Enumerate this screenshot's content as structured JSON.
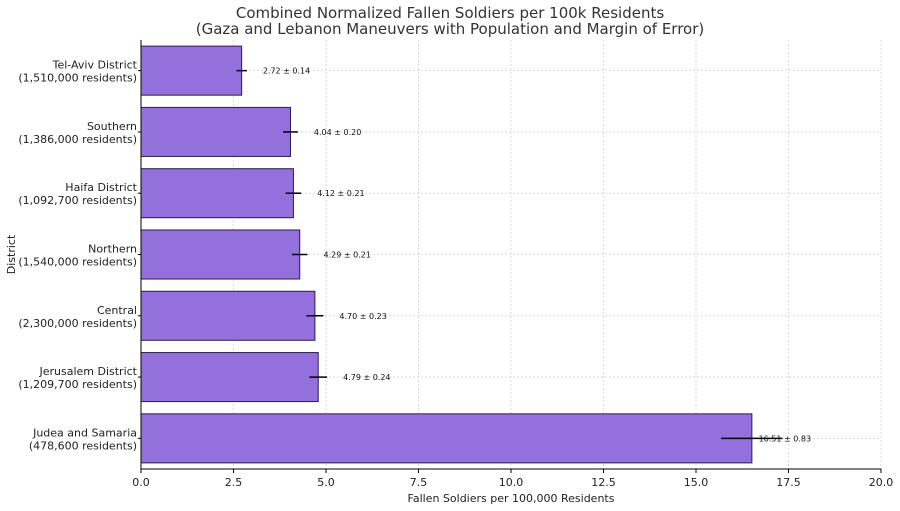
{
  "chart_data": {
    "type": "bar",
    "orientation": "horizontal",
    "title": "Combined Normalized Fallen Soldiers per 100k Residents",
    "subtitle": "(Gaza and Lebanon Maneuvers with Population and Margin of Error)",
    "xlabel": "Fallen Soldiers per 100,000 Residents",
    "ylabel": "District",
    "xlim": [
      0,
      20
    ],
    "xticks": [
      0,
      2.5,
      5,
      7.5,
      10,
      12.5,
      15,
      17.5,
      20
    ],
    "xtick_labels": [
      "0.0",
      "2.5",
      "5.0",
      "7.5",
      "10.0",
      "12.5",
      "15.0",
      "17.5",
      "20.0"
    ],
    "grid": true,
    "bar_color": "#9370db",
    "bar_edge_color": "#2b1d4a",
    "categories": [
      {
        "name": "Tel-Aviv District",
        "residents": "(1,510,000 residents)"
      },
      {
        "name": "Southern",
        "residents": "(1,386,000 residents)"
      },
      {
        "name": "Haifa District",
        "residents": "(1,092,700 residents)"
      },
      {
        "name": "Northern",
        "residents": "(1,540,000 residents)"
      },
      {
        "name": "Central",
        "residents": "(2,300,000 residents)"
      },
      {
        "name": "Jerusalem District",
        "residents": "(1,209,700 residents)"
      },
      {
        "name": "Judea and Samaria",
        "residents": "(478,600 residents)"
      }
    ],
    "values": [
      2.72,
      4.04,
      4.12,
      4.29,
      4.7,
      4.79,
      16.51
    ],
    "errors": [
      0.14,
      0.2,
      0.21,
      0.21,
      0.23,
      0.24,
      0.83
    ],
    "data_labels": [
      "2.72 ± 0.14",
      "4.04 ± 0.20",
      "4.12 ± 0.21",
      "4.29 ± 0.21",
      "4.70 ± 0.23",
      "4.79 ± 0.24",
      "16.51 ± 0.83"
    ]
  }
}
